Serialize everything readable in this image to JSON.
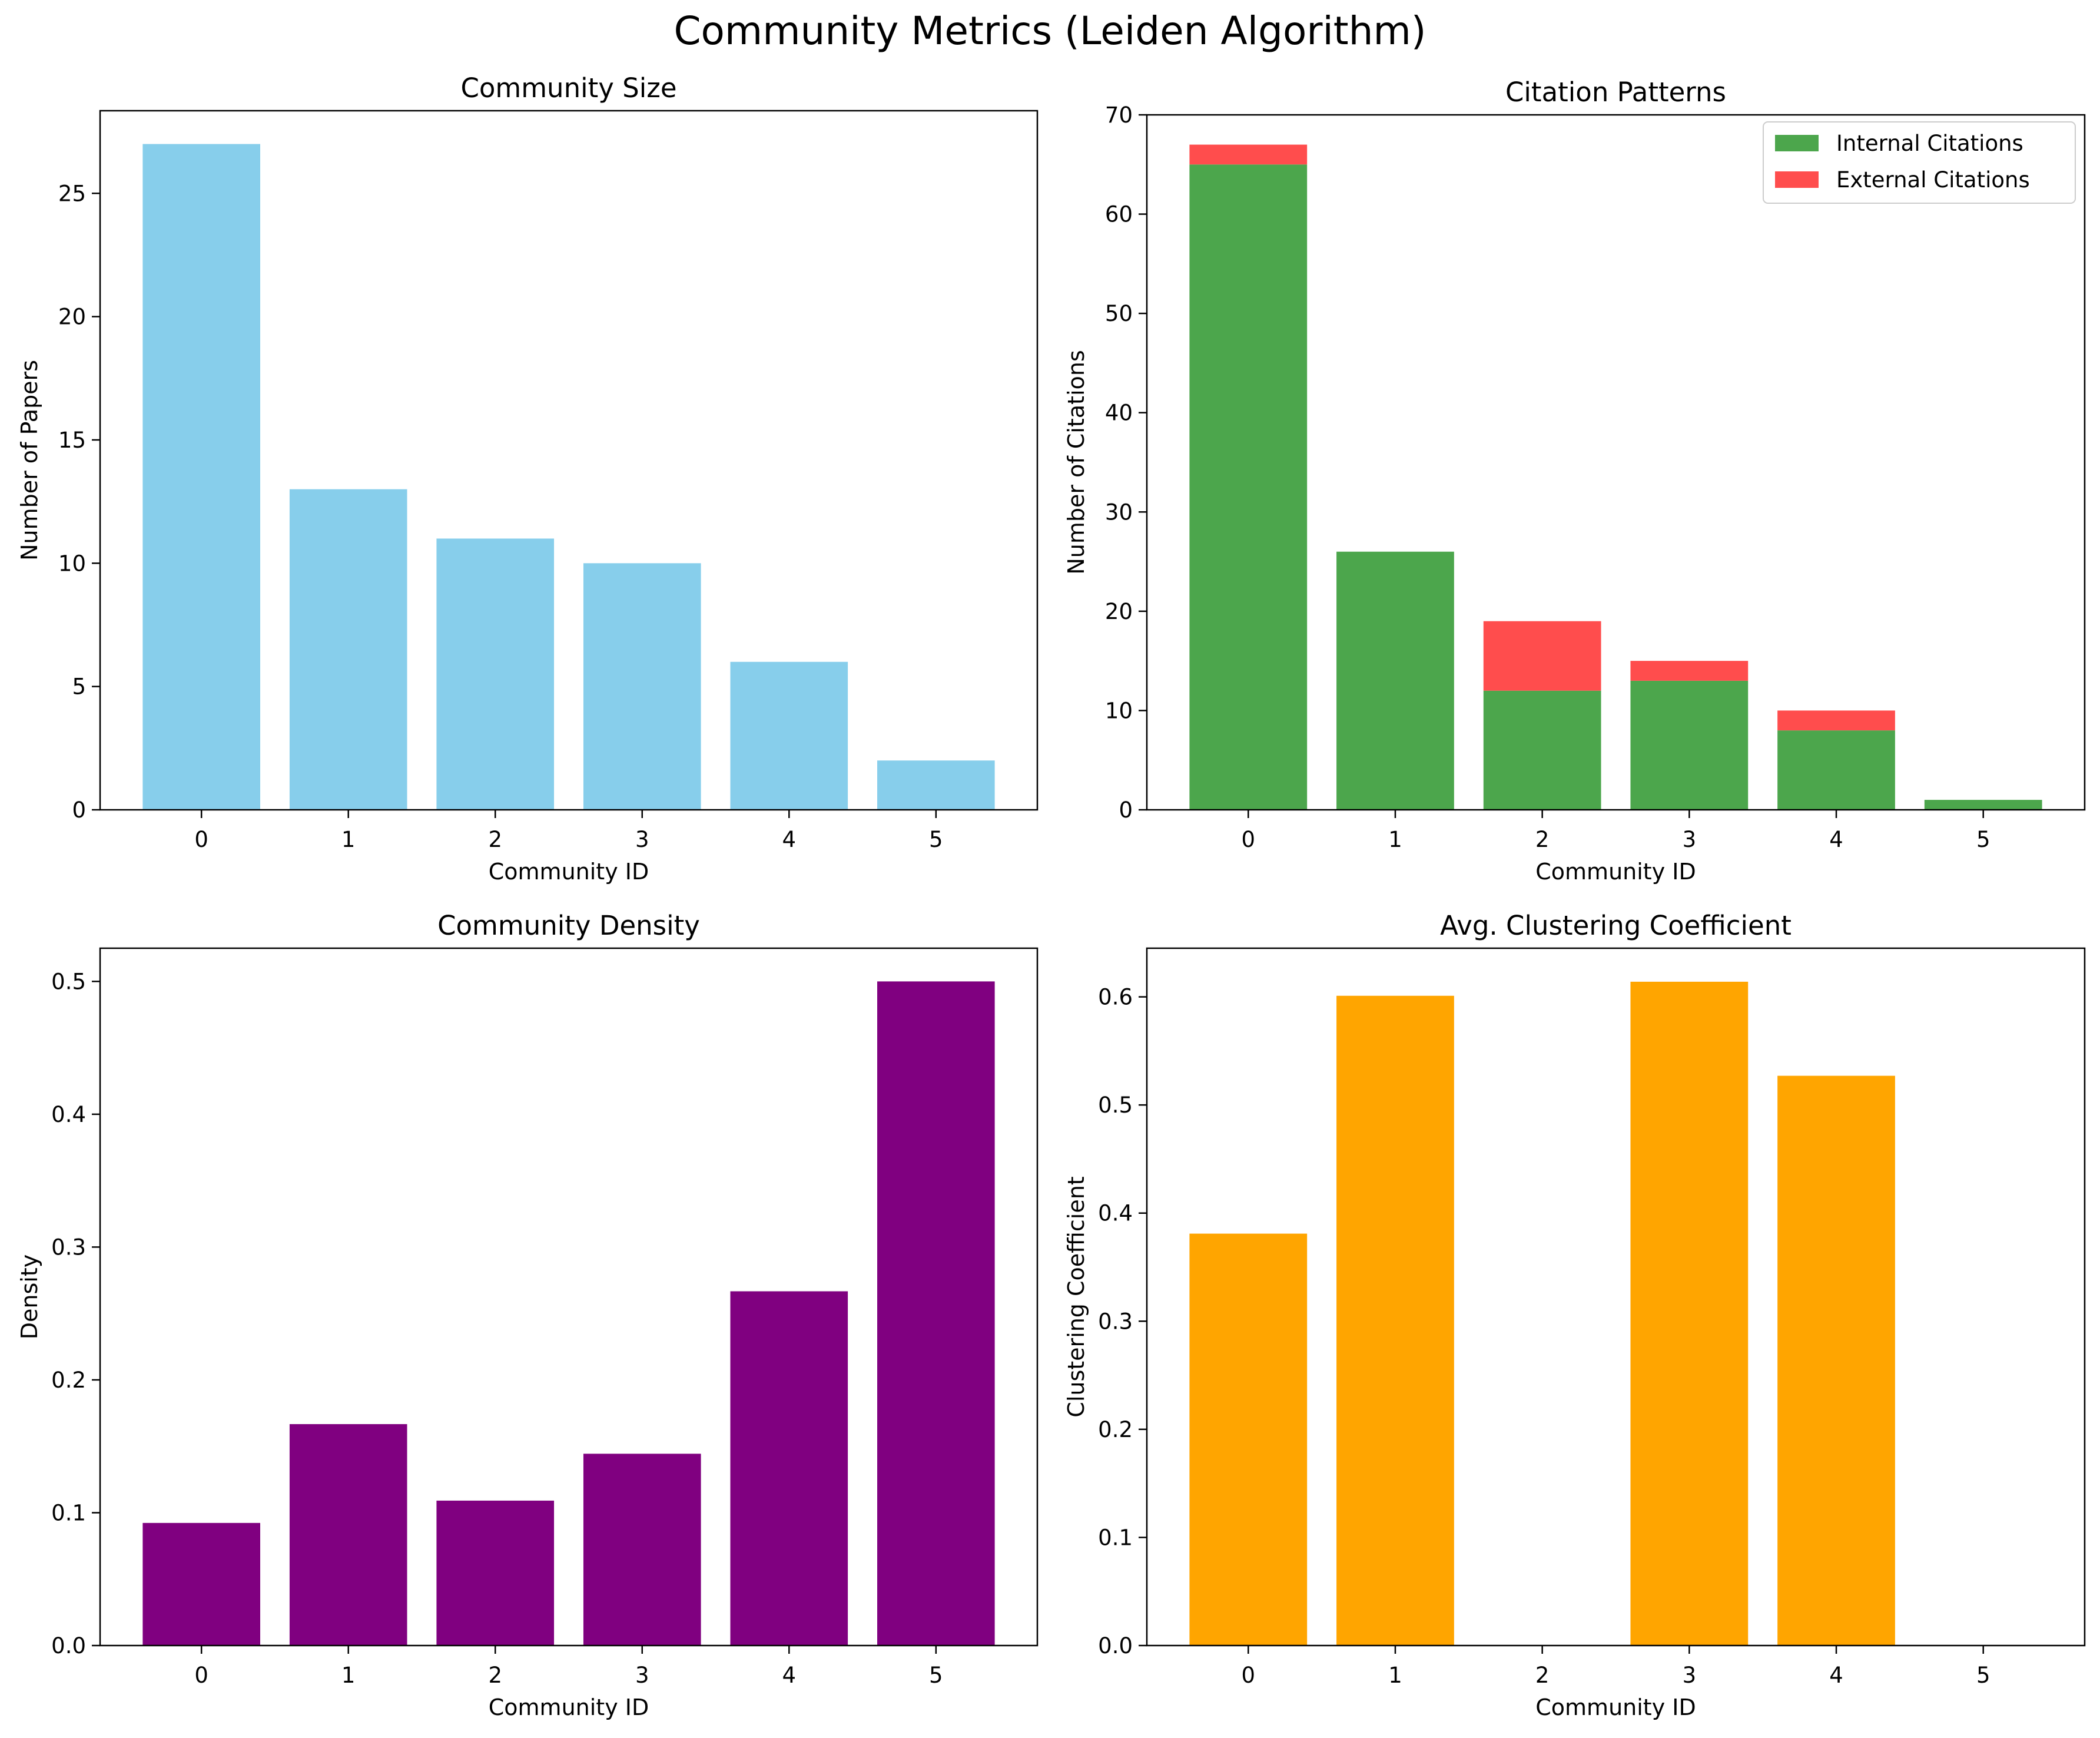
{
  "figure": {
    "title": "Community Metrics (Leiden Algorithm)"
  },
  "chart_data": [
    {
      "type": "bar",
      "title": "Community Size",
      "xlabel": "Community ID",
      "ylabel": "Number of Papers",
      "categories": [
        "0",
        "1",
        "2",
        "3",
        "4",
        "5"
      ],
      "series": [
        {
          "values": [
            27,
            13,
            11,
            10,
            6,
            2
          ],
          "color": "#87CEEB"
        }
      ],
      "ylim": [
        0,
        28.35
      ],
      "yticks": [
        0,
        5,
        10,
        15,
        20,
        25
      ],
      "ytick_labels": [
        "0",
        "5",
        "10",
        "15",
        "20",
        "25"
      ],
      "stacked": false,
      "grid": false
    },
    {
      "type": "bar",
      "title": "Citation Patterns",
      "xlabel": "Community ID",
      "ylabel": "Number of Citations",
      "categories": [
        "0",
        "1",
        "2",
        "3",
        "4",
        "5"
      ],
      "series": [
        {
          "name": "Internal Citations",
          "values": [
            65,
            26,
            12,
            13,
            8,
            1
          ],
          "color": "#4CA64C"
        },
        {
          "name": "External Citations",
          "values": [
            2,
            0,
            7,
            2,
            2,
            0
          ],
          "color": "#FF4D4D"
        }
      ],
      "ylim": [
        0,
        70
      ],
      "yticks": [
        0,
        10,
        20,
        30,
        40,
        50,
        60,
        70
      ],
      "ytick_labels": [
        "0",
        "10",
        "20",
        "30",
        "40",
        "50",
        "60",
        "70"
      ],
      "stacked": true,
      "legend": "top-right",
      "grid": false
    },
    {
      "type": "bar",
      "title": "Community Density",
      "xlabel": "Community ID",
      "ylabel": "Density",
      "categories": [
        "0",
        "1",
        "2",
        "3",
        "4",
        "5"
      ],
      "series": [
        {
          "values": [
            0.0923,
            0.1667,
            0.1091,
            0.1444,
            0.2667,
            0.5
          ],
          "color": "#800080"
        }
      ],
      "ylim": [
        0,
        0.525
      ],
      "yticks": [
        0,
        0.1,
        0.2,
        0.3,
        0.4,
        0.5
      ],
      "ytick_labels": [
        "0.0",
        "0.1",
        "0.2",
        "0.3",
        "0.4",
        "0.5"
      ],
      "stacked": false,
      "grid": false
    },
    {
      "type": "bar",
      "title": "Avg. Clustering Coefficient",
      "xlabel": "Community ID",
      "ylabel": "Clustering Coefficient",
      "categories": [
        "0",
        "1",
        "2",
        "3",
        "4",
        "5"
      ],
      "series": [
        {
          "values": [
            0.381,
            0.601,
            0,
            0.614,
            0.527,
            0
          ],
          "color": "#FFA500"
        }
      ],
      "ylim": [
        0,
        0.645
      ],
      "yticks": [
        0,
        0.1,
        0.2,
        0.3,
        0.4,
        0.5,
        0.6
      ],
      "ytick_labels": [
        "0.0",
        "0.1",
        "0.2",
        "0.3",
        "0.4",
        "0.5",
        "0.6"
      ],
      "stacked": false,
      "grid": false
    }
  ]
}
